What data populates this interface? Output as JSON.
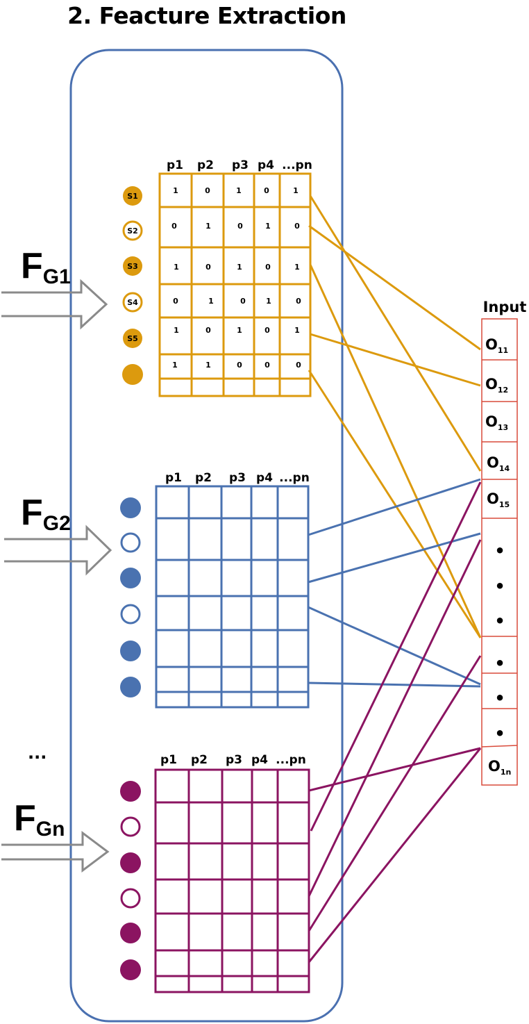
{
  "title": "2. Feacture Extraction",
  "colors": {
    "container": "#4a70b0",
    "group1": "#dc9a0e",
    "group2": "#4a72b0",
    "group3": "#8b1461",
    "input": "#d94a3a",
    "arrow": "#8a8a8a"
  },
  "group1": {
    "main": "F",
    "sub": "G1",
    "columns": [
      "p1",
      "p2",
      "p3",
      "p4",
      "...pn"
    ],
    "sensors": [
      {
        "label": "S1",
        "filled": true
      },
      {
        "label": "S2",
        "filled": false
      },
      {
        "label": "S3",
        "filled": true
      },
      {
        "label": "S4",
        "filled": false
      },
      {
        "label": "S5",
        "filled": true
      },
      {
        "label": "",
        "filled": true
      }
    ],
    "rows": [
      [
        "1",
        "0",
        "1",
        "0",
        "1"
      ],
      [
        "0",
        "1",
        "0",
        "1",
        "0"
      ],
      [
        "1",
        "0",
        "1",
        "0",
        "1"
      ],
      [
        "0",
        "1",
        "0",
        "1",
        "0"
      ],
      [
        "1",
        "0",
        "1",
        "0",
        "1"
      ],
      [
        "1",
        "1",
        "0",
        "0",
        "0"
      ]
    ]
  },
  "group2": {
    "main": "F",
    "sub": "G2",
    "columns": [
      "p1",
      "p2",
      "p3",
      "p4",
      "...pn"
    ],
    "sensors": [
      {
        "filled": true
      },
      {
        "filled": false
      },
      {
        "filled": true
      },
      {
        "filled": false
      },
      {
        "filled": true
      },
      {
        "filled": true
      }
    ]
  },
  "ellipsis": "...",
  "group3": {
    "main": "F",
    "sub": "Gn",
    "columns": [
      "p1",
      "p2",
      "p3",
      "p4",
      "...pn"
    ],
    "sensors": [
      {
        "filled": true
      },
      {
        "filled": false
      },
      {
        "filled": true
      },
      {
        "filled": false
      },
      {
        "filled": true
      },
      {
        "filled": true
      }
    ]
  },
  "input": {
    "title": "Input",
    "cells": [
      {
        "main": "O",
        "sub": "11"
      },
      {
        "main": "O",
        "sub": "12"
      },
      {
        "main": "O",
        "sub": "13"
      },
      {
        "main": "O",
        "sub": "14"
      },
      {
        "main": "O",
        "sub": "15"
      },
      {
        "main": "•",
        "sub": ""
      },
      {
        "main": "•",
        "sub": ""
      },
      {
        "main": "•",
        "sub": ""
      },
      {
        "main": "•",
        "sub": ""
      },
      {
        "main": "•",
        "sub": ""
      },
      {
        "main": "•",
        "sub": ""
      },
      {
        "main": "O",
        "sub": "1n"
      }
    ]
  }
}
